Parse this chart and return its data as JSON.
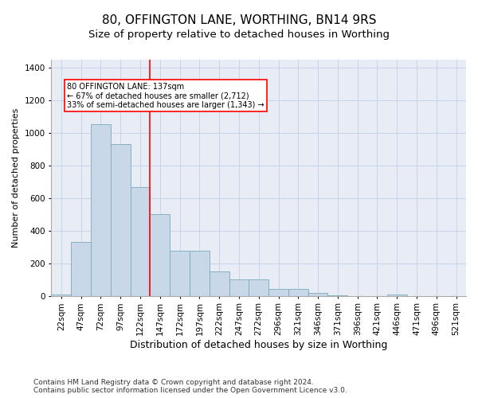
{
  "title1": "80, OFFINGTON LANE, WORTHING, BN14 9RS",
  "title2": "Size of property relative to detached houses in Worthing",
  "xlabel": "Distribution of detached houses by size in Worthing",
  "ylabel": "Number of detached properties",
  "categories": [
    "22sqm",
    "47sqm",
    "72sqm",
    "97sqm",
    "122sqm",
    "147sqm",
    "172sqm",
    "197sqm",
    "222sqm",
    "247sqm",
    "272sqm",
    "296sqm",
    "321sqm",
    "346sqm",
    "371sqm",
    "396sqm",
    "421sqm",
    "446sqm",
    "471sqm",
    "496sqm",
    "521sqm"
  ],
  "values": [
    10,
    330,
    1055,
    930,
    670,
    500,
    275,
    275,
    150,
    100,
    100,
    40,
    40,
    20,
    5,
    0,
    0,
    10,
    0,
    0,
    0
  ],
  "bar_color": "#c8d8e8",
  "bar_edge_color": "#7aaabb",
  "annotation_line1": "80 OFFINGTON LANE: 137sqm",
  "annotation_line2": "← 67% of detached houses are smaller (2,712)",
  "annotation_line3": "33% of semi-detached houses are larger (1,343) →",
  "ylim": [
    0,
    1450
  ],
  "yticks": [
    0,
    200,
    400,
    600,
    800,
    1000,
    1200,
    1400
  ],
  "grid_color": "#c8d4e8",
  "background_color": "#e8ecf4",
  "footnote1": "Contains HM Land Registry data © Crown copyright and database right 2024.",
  "footnote2": "Contains public sector information licensed under the Open Government Licence v3.0.",
  "title1_fontsize": 11,
  "title2_fontsize": 9.5,
  "xlabel_fontsize": 9,
  "ylabel_fontsize": 8,
  "tick_fontsize": 7.5,
  "footnote_fontsize": 6.5
}
